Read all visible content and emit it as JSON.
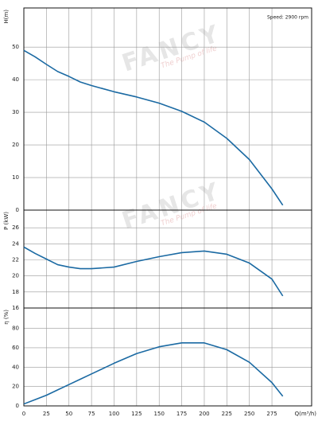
{
  "watermark": {
    "brand": "FANCY",
    "slogan": "The Pump of life"
  },
  "chart_data": [
    {
      "type": "line",
      "annotation": "Speed: 2900 rpm",
      "ylabel": "H(m)",
      "x": [
        0,
        12.5,
        25,
        37.5,
        50,
        62.5,
        75,
        100,
        125,
        150,
        175,
        200,
        225,
        250,
        275,
        287
      ],
      "series": [
        {
          "color": "#1b6aa3",
          "values": [
            49,
            47,
            44.7,
            42.5,
            41,
            39.3,
            38.2,
            36.3,
            34.7,
            32.8,
            30.3,
            27,
            22,
            15.5,
            6.5,
            1.5
          ]
        }
      ],
      "xlim": [
        0,
        319
      ],
      "xticks": [
        0,
        25,
        50,
        75,
        100,
        125,
        150,
        175,
        200,
        225,
        250,
        275
      ],
      "ylim": [
        0,
        62
      ],
      "yticks": [
        0,
        10,
        20,
        30,
        40,
        50
      ],
      "grid": true
    },
    {
      "type": "line",
      "ylabel": "P (kW)",
      "x": [
        0,
        12.5,
        25,
        37.5,
        50,
        62.5,
        75,
        100,
        125,
        150,
        175,
        200,
        225,
        250,
        275,
        287
      ],
      "series": [
        {
          "color": "#1b6aa3",
          "values": [
            23.6,
            22.8,
            22.1,
            21.4,
            21.1,
            20.9,
            20.9,
            21.1,
            21.8,
            22.4,
            22.9,
            23.1,
            22.7,
            21.6,
            19.6,
            17.5
          ]
        }
      ],
      "xlim": [
        0,
        319
      ],
      "xticks": [
        0,
        25,
        50,
        75,
        100,
        125,
        150,
        175,
        200,
        225,
        250,
        275
      ],
      "ylim": [
        16,
        28.2
      ],
      "yticks": [
        16,
        18,
        20,
        22,
        24,
        26
      ],
      "grid": true
    },
    {
      "type": "line",
      "ylabel": "η (%)",
      "xlabel": "Q(m³/h)",
      "x": [
        0,
        12.5,
        25,
        37.5,
        50,
        62.5,
        75,
        100,
        125,
        150,
        175,
        200,
        225,
        250,
        275,
        287
      ],
      "series": [
        {
          "color": "#1b6aa3",
          "values": [
            2,
            6.5,
            11,
            16.5,
            22,
            27.5,
            33,
            44,
            54,
            61,
            65,
            65,
            58,
            45,
            24,
            10
          ]
        }
      ],
      "xlim": [
        0,
        319
      ],
      "xticks": [
        0,
        25,
        50,
        75,
        100,
        125,
        150,
        175,
        200,
        225,
        250,
        275
      ],
      "ylim": [
        0,
        101
      ],
      "yticks": [
        0,
        20,
        40,
        60,
        80
      ],
      "grid": true
    }
  ]
}
